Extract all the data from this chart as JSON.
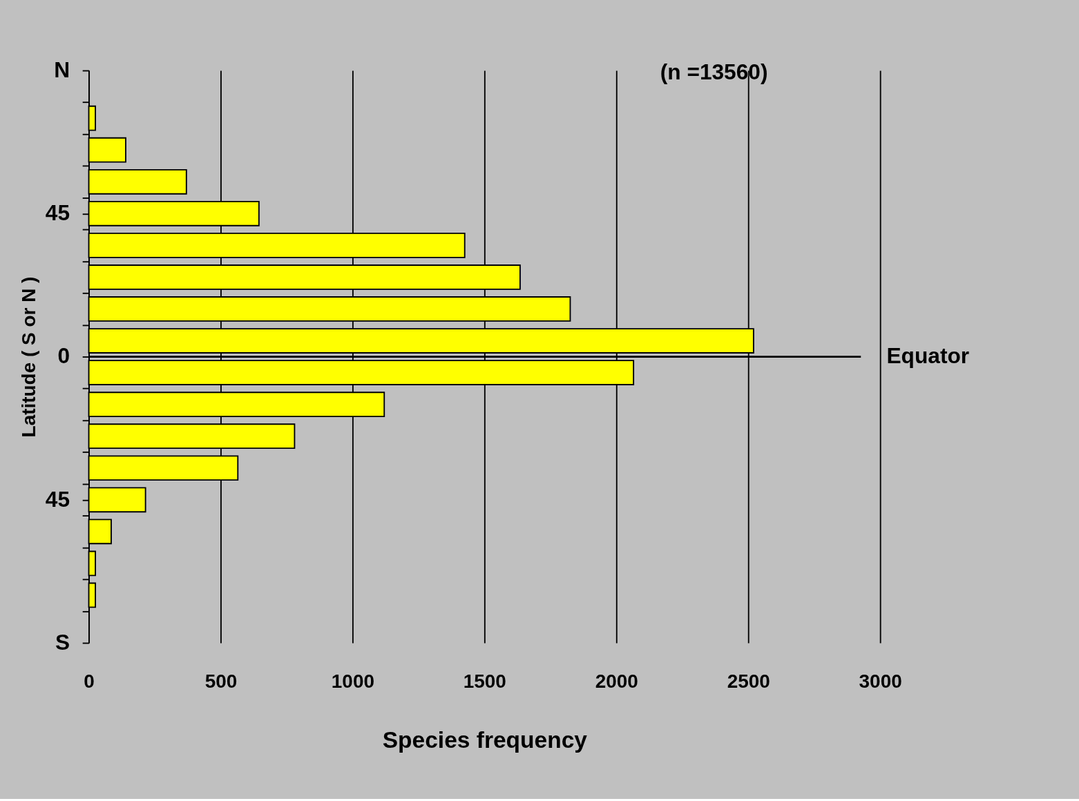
{
  "chart_data": {
    "type": "histogram",
    "orientation": "horizontal",
    "xlabel": "Species frequency",
    "ylabel": "Latitude ( S or N )",
    "bins": [
      80,
      70,
      60,
      50,
      40,
      30,
      20,
      10,
      0,
      -10,
      -20,
      -30,
      -40,
      -50,
      -60,
      -70,
      -80
    ],
    "values": [
      25,
      140,
      370,
      645,
      1425,
      1635,
      1825,
      2520,
      2065,
      1120,
      780,
      565,
      215,
      85,
      25,
      25
    ],
    "color": "#ffff00",
    "xlim": [
      0,
      3000
    ],
    "xticks": [
      0,
      500,
      1000,
      1500,
      2000,
      2500,
      3000
    ],
    "ylim": [
      -90,
      90
    ],
    "yticks": [
      {
        "value": 90,
        "label": "N"
      },
      {
        "value": 80,
        "label": null
      },
      {
        "value": 70,
        "label": null
      },
      {
        "value": 60,
        "label": null
      },
      {
        "value": 50,
        "label": null
      },
      {
        "value": 45,
        "label": "45"
      },
      {
        "value": 40,
        "label": null
      },
      {
        "value": 30,
        "label": null
      },
      {
        "value": 20,
        "label": null
      },
      {
        "value": 10,
        "label": null
      },
      0,
      {
        "value": -10,
        "label": null
      },
      {
        "value": -20,
        "label": null
      },
      {
        "value": -30,
        "label": null
      },
      {
        "value": -40,
        "label": null
      },
      {
        "value": -45,
        "label": "45"
      },
      {
        "value": -50,
        "label": null
      },
      {
        "value": -60,
        "label": null
      },
      {
        "value": -70,
        "label": null
      },
      {
        "value": -80,
        "label": null
      },
      {
        "value": -90,
        "label": "S"
      }
    ],
    "grid": "x",
    "ref_lines": [
      {
        "axis": "y",
        "value": 0,
        "label": "Equator"
      }
    ],
    "annotations": [
      "(n =13560)"
    ]
  }
}
